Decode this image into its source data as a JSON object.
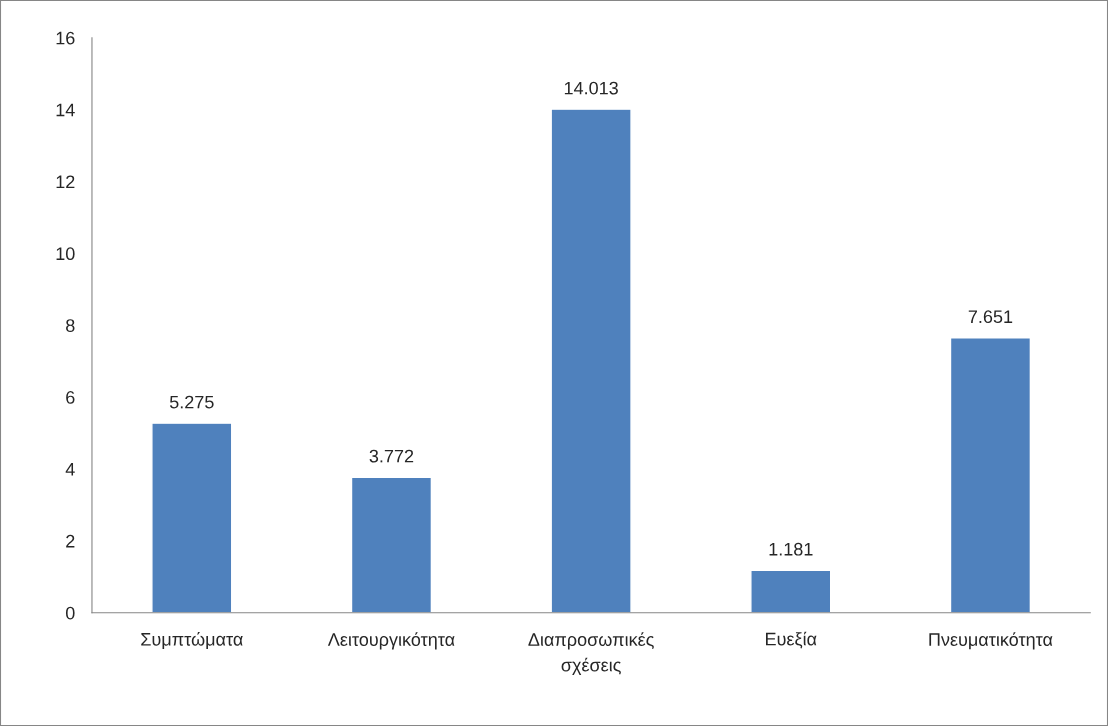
{
  "chart_data": {
    "type": "bar",
    "categories": [
      "Συμπτώματα",
      "Λειτουργικότητα",
      "Διαπροσωπικές\nσχέσεις",
      "Ευεξία",
      "Πνευματικότητα"
    ],
    "values": [
      5.275,
      3.772,
      14.013,
      1.181,
      7.651
    ],
    "color": "#4f81bd",
    "ylim": [
      0,
      16
    ],
    "yticks": [
      0,
      2,
      4,
      6,
      8,
      10,
      12,
      14,
      16
    ],
    "data_labels": true,
    "grid": false,
    "legend": false
  }
}
